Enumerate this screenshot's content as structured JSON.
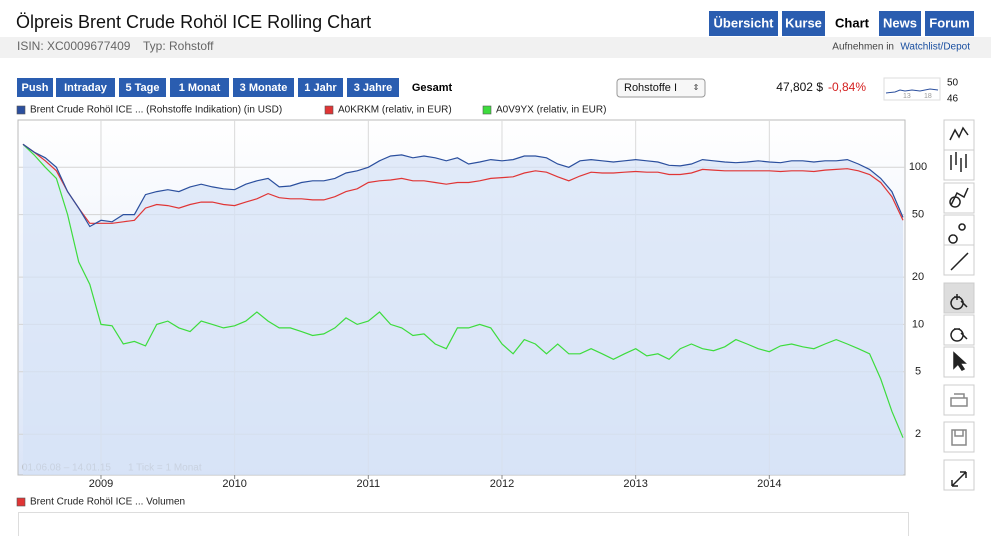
{
  "header": {
    "title": "Ölpreis Brent Crude Rohöl ICE Rolling Chart",
    "isin": "ISIN: XC0009677409",
    "typ": "Typ: Rohstoff",
    "watch_prefix": "Aufnehmen in",
    "watch_link": "Watchlist/Depot"
  },
  "nav": [
    "Übersicht",
    "Kurse",
    "Chart",
    "News",
    "Forum"
  ],
  "ranges": [
    "Push",
    "Intraday",
    "5 Tage",
    "1 Monat",
    "3 Monate",
    "1 Jahr",
    "3 Jahre",
    "Gesamt"
  ],
  "select": "Rohstoffe I",
  "quote": {
    "price": "47,802 $",
    "change": "-0,84%"
  },
  "mini_chart": {
    "high": "50",
    "low": "46",
    "x_labels": [
      "13",
      "18"
    ]
  },
  "chart_data": {
    "type": "line",
    "date_range": "01.06.08 – 14.01.15",
    "tick_note": "1 Tick = 1 Monat",
    "log_scale": true,
    "grid": true,
    "ylim": [
      1.1,
      200
    ],
    "yticks": [
      2,
      5,
      10,
      20,
      50,
      100
    ],
    "categories": [
      null,
      null,
      null,
      null,
      null,
      null,
      null,
      "2009",
      null,
      null,
      null,
      null,
      null,
      null,
      null,
      null,
      null,
      null,
      null,
      "2010",
      null,
      null,
      null,
      null,
      null,
      null,
      null,
      null,
      null,
      null,
      null,
      "2011",
      null,
      null,
      null,
      null,
      null,
      null,
      null,
      null,
      null,
      null,
      null,
      "2012",
      null,
      null,
      null,
      null,
      null,
      null,
      null,
      null,
      null,
      null,
      null,
      "2013",
      null,
      null,
      null,
      null,
      null,
      null,
      null,
      null,
      null,
      null,
      null,
      "2014",
      null,
      null,
      null,
      null,
      null,
      null,
      null,
      null,
      null,
      null,
      null,
      null
    ],
    "series": [
      {
        "name": "Brent Crude Rohöl ICE ... (Rohstoffe Indikation) (in USD)",
        "color": "#2b4f9e",
        "fill": "#d6e2f7",
        "values": [
          140,
          125,
          115,
          100,
          70,
          55,
          42,
          46,
          45,
          50,
          50,
          67,
          70,
          72,
          70,
          75,
          78,
          75,
          73,
          72,
          78,
          82,
          85,
          75,
          76,
          80,
          82,
          82,
          85,
          92,
          95,
          100,
          110,
          118,
          120,
          115,
          118,
          115,
          110,
          115,
          105,
          108,
          112,
          110,
          112,
          118,
          118,
          115,
          105,
          100,
          110,
          112,
          110,
          108,
          110,
          112,
          110,
          108,
          103,
          102,
          105,
          112,
          110,
          108,
          107,
          108,
          110,
          108,
          107,
          110,
          110,
          108,
          110,
          110,
          112,
          105,
          97,
          85,
          70,
          48
        ]
      },
      {
        "name": "A0KRKM (relativ, in EUR)",
        "color": "#e03535",
        "values": [
          140,
          125,
          110,
          95,
          70,
          55,
          44,
          44,
          44,
          45,
          46,
          55,
          58,
          57,
          55,
          58,
          60,
          60,
          58,
          57,
          60,
          63,
          68,
          64,
          63,
          63,
          62,
          62,
          65,
          70,
          73,
          80,
          82,
          83,
          85,
          82,
          82,
          80,
          78,
          80,
          80,
          82,
          85,
          86,
          87,
          92,
          95,
          93,
          87,
          82,
          88,
          93,
          92,
          92,
          93,
          94,
          93,
          93,
          90,
          90,
          92,
          97,
          96,
          95,
          95,
          95,
          95,
          95,
          94,
          95,
          95,
          94,
          96,
          97,
          98,
          95,
          90,
          80,
          65,
          46
        ]
      },
      {
        "name": "A0V9YX (relativ, in EUR)",
        "color": "#3ddc3d",
        "values": [
          140,
          120,
          100,
          85,
          50,
          25,
          18,
          10,
          9.8,
          7.5,
          7.8,
          7.3,
          10,
          10.5,
          9.5,
          9,
          10.5,
          10,
          9.5,
          9.8,
          10.5,
          12,
          10.5,
          9.5,
          9.5,
          9,
          8.5,
          8.7,
          9.5,
          11,
          10,
          10.5,
          12,
          10,
          9.5,
          8.5,
          8.7,
          7.5,
          7,
          9.5,
          9.5,
          10,
          9.5,
          7.5,
          6.5,
          8,
          7.5,
          6.5,
          7.5,
          6.5,
          6.5,
          7,
          6.5,
          6,
          6.5,
          7,
          6.3,
          6.5,
          6,
          7,
          7.5,
          7,
          6.8,
          7.2,
          8,
          7.5,
          7,
          6.7,
          7.3,
          7.5,
          7.2,
          7,
          7.5,
          8,
          7.5,
          7,
          6.5,
          4.5,
          2.8,
          1.9
        ]
      }
    ]
  },
  "volume_legend": "Brent Crude Rohöl ICE ... Volumen"
}
